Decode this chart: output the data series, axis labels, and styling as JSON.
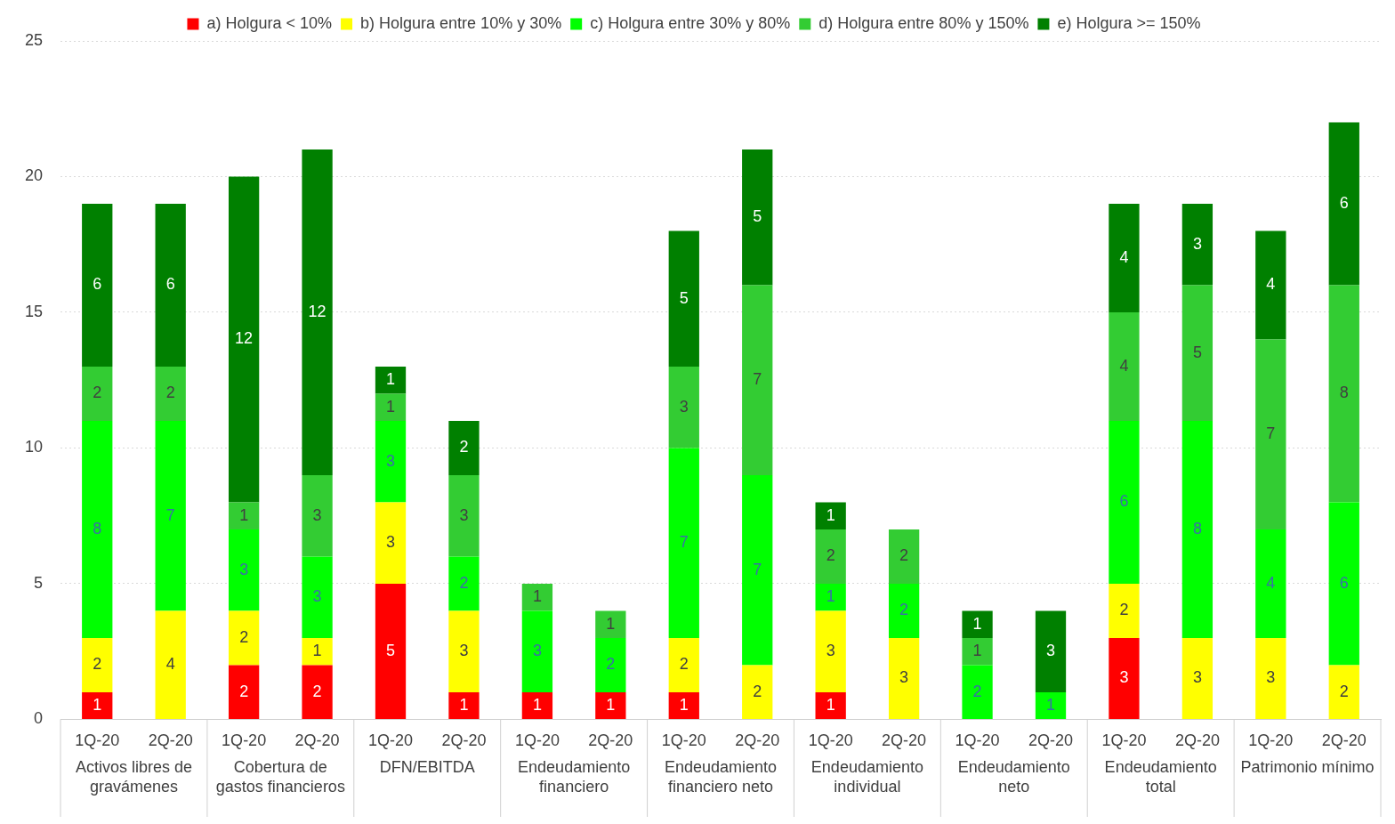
{
  "chart_data": {
    "type": "bar",
    "stacked": true,
    "data_labels": true,
    "legend": "top",
    "grid": "y",
    "ylim": [
      0,
      25
    ],
    "yticks": [
      0,
      5,
      10,
      15,
      20,
      25
    ],
    "categories": [
      "1Q-20",
      "2Q-20",
      "1Q-20",
      "2Q-20",
      "1Q-20",
      "2Q-20",
      "1Q-20",
      "2Q-20",
      "1Q-20",
      "2Q-20",
      "1Q-20",
      "2Q-20",
      "1Q-20",
      "2Q-20",
      "1Q-20",
      "2Q-20",
      "1Q-20",
      "2Q-20"
    ],
    "annotations": [
      "Activos libres de gravámenes",
      "Cobertura de gastos financieros",
      "DFN/EBITDA",
      "Endeudamiento financiero",
      "Endeudamiento financiero neto",
      "Endeudamiento individual",
      "Endeudamiento neto",
      "Endeudamiento total",
      "Patrimonio mínimo"
    ],
    "series": [
      {
        "name": "a) Holgura < 10%",
        "color": "#ff0000",
        "values": [
          1,
          null,
          2,
          2,
          5,
          1,
          1,
          1,
          1,
          null,
          1,
          null,
          null,
          null,
          3,
          null,
          null,
          null
        ]
      },
      {
        "name": "b) Holgura entre 10% y 30%",
        "color": "#ffff00",
        "values": [
          2,
          4,
          2,
          1,
          3,
          3,
          null,
          null,
          2,
          2,
          3,
          3,
          null,
          null,
          2,
          3,
          3,
          2
        ]
      },
      {
        "name": "c) Holgura entre 30% y 80%",
        "color": "#00ff00",
        "values": [
          8,
          7,
          3,
          3,
          3,
          2,
          3,
          2,
          7,
          7,
          1,
          2,
          2,
          1,
          6,
          8,
          4,
          6
        ]
      },
      {
        "name": "d) Holgura entre 80% y 150%",
        "color": "#33cc33",
        "values": [
          2,
          2,
          1,
          3,
          1,
          3,
          1,
          1,
          3,
          7,
          2,
          2,
          1,
          null,
          4,
          5,
          7,
          8
        ]
      },
      {
        "name": "e) Holgura >= 150%",
        "color": "#008000",
        "values": [
          6,
          6,
          12,
          12,
          1,
          2,
          null,
          null,
          5,
          5,
          1,
          null,
          1,
          3,
          4,
          3,
          4,
          6
        ]
      }
    ]
  }
}
